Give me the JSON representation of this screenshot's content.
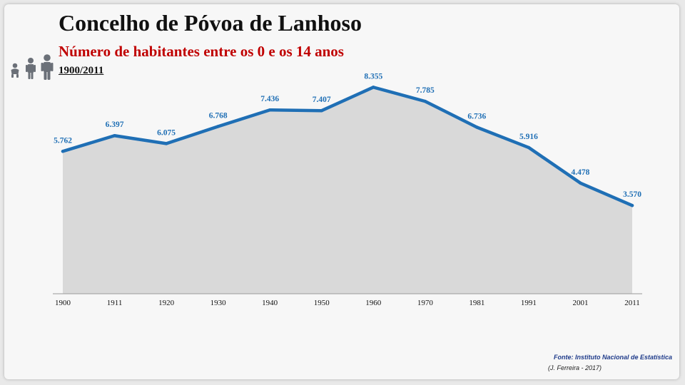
{
  "header": {
    "title": "Concelho de Póvoa de Lanhoso",
    "subtitle": "Número de habitantes entre os 0 e os 14 anos",
    "period": "1900/2011"
  },
  "icons": [
    "baby-icon",
    "child-icon",
    "adult-icon"
  ],
  "footer": {
    "source": "Fonte: Instituto Nacional de Estatística",
    "credit": "(J. Ferreira - 2017)"
  },
  "colors": {
    "line": "#1f6fb5",
    "area": "#d9d9d9",
    "subtitle": "#c00000",
    "label": "#1f6fb5"
  },
  "chart_data": {
    "type": "area",
    "x": [
      "1900",
      "1911",
      "1920",
      "1930",
      "1940",
      "1950",
      "1960",
      "1970",
      "1981",
      "1991",
      "2001",
      "2011"
    ],
    "values": [
      5762,
      6397,
      6075,
      6768,
      7436,
      7407,
      8355,
      7785,
      6736,
      5916,
      4478,
      3570
    ],
    "labels": [
      "5.762",
      "6.397",
      "6.075",
      "6.768",
      "7.436",
      "7.407",
      "8.355",
      "7.785",
      "6.736",
      "5.916",
      "4.478",
      "3.570"
    ],
    "ylim": [
      0,
      9000
    ],
    "grid": false,
    "legend": "none"
  }
}
